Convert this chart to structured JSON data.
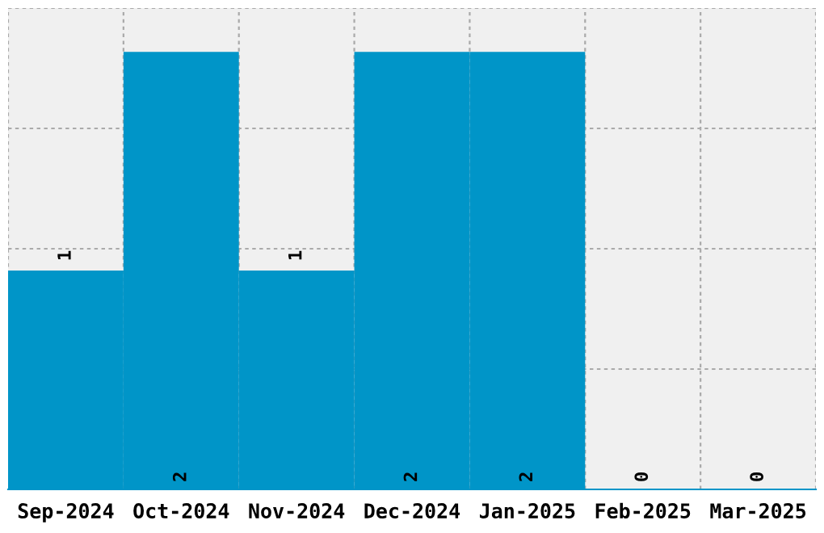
{
  "chart_data": {
    "type": "bar",
    "categories": [
      "Sep-2024",
      "Oct-2024",
      "Nov-2024",
      "Dec-2024",
      "Jan-2025",
      "Feb-2025",
      "Mar-2025"
    ],
    "values": [
      1,
      2,
      1,
      2,
      2,
      0,
      0
    ],
    "color": "#0095c8",
    "ylim": [
      0,
      2.2
    ],
    "yticks": [
      {
        "value": 0.55,
        "label": null
      },
      {
        "value": 1.1,
        "label": null
      },
      {
        "value": 1.65,
        "label": null
      },
      {
        "value": 2.2,
        "label": null
      }
    ],
    "tick_labels": "x",
    "grid": true,
    "data_labels": true
  }
}
